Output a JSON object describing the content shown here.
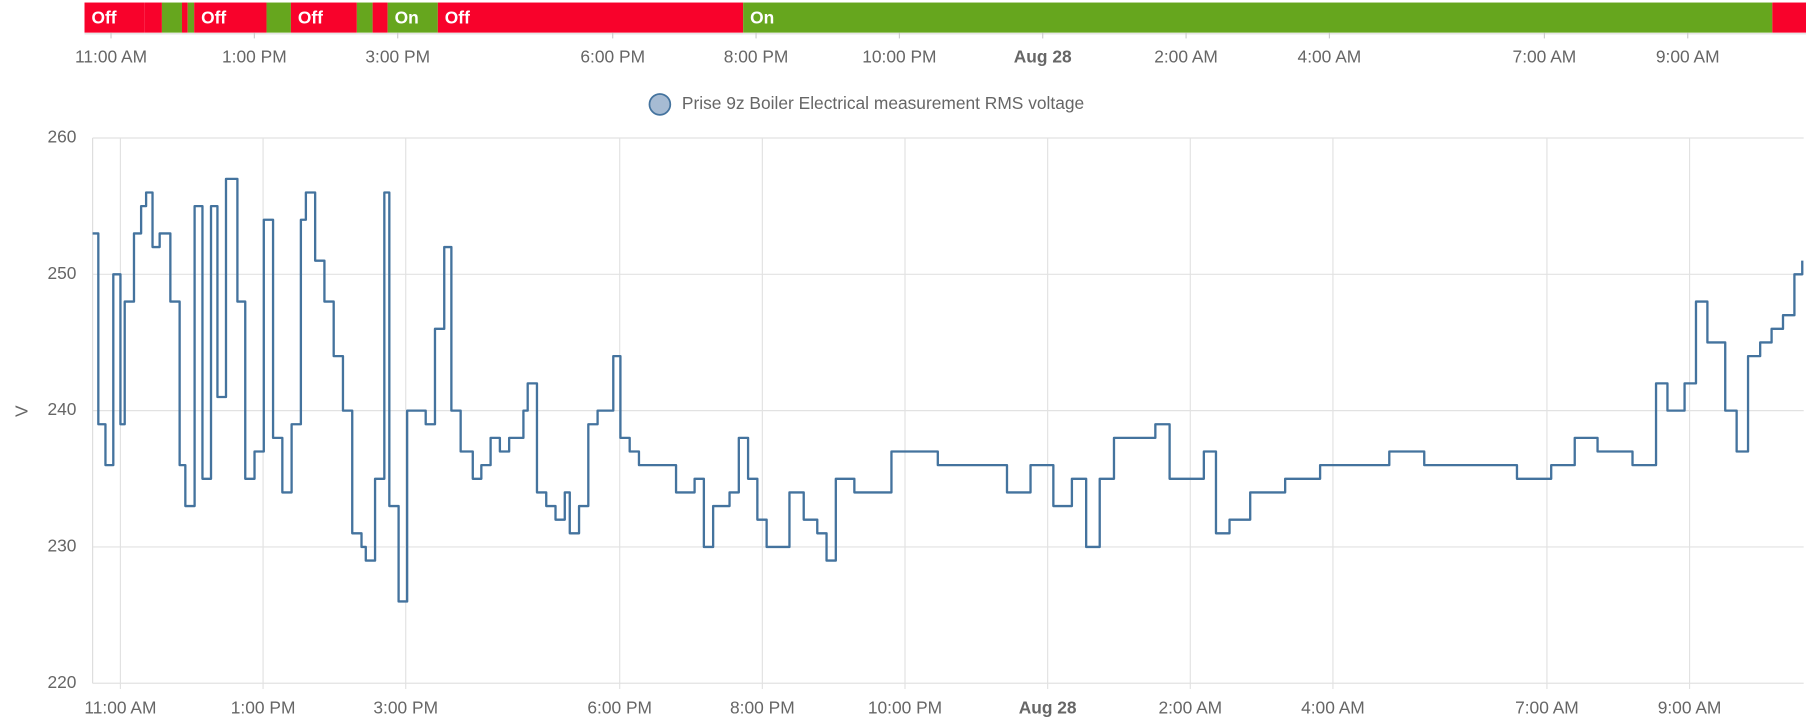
{
  "chart_data": [
    {
      "type": "timeline",
      "xlim": [
        10.63,
        34.65
      ],
      "xticks": [
        {
          "value": 11,
          "label": "11:00 AM"
        },
        {
          "value": 13,
          "label": "1:00 PM"
        },
        {
          "value": 15,
          "label": "3:00 PM"
        },
        {
          "value": 18,
          "label": "6:00 PM"
        },
        {
          "value": 20,
          "label": "8:00 PM"
        },
        {
          "value": 22,
          "label": "10:00 PM"
        },
        {
          "value": 24,
          "label": "Aug 28",
          "bold": true
        },
        {
          "value": 26,
          "label": "2:00 AM"
        },
        {
          "value": 28,
          "label": "4:00 AM"
        },
        {
          "value": 31,
          "label": "7:00 AM"
        },
        {
          "value": 33,
          "label": "9:00 AM"
        }
      ],
      "state_colors": {
        "Off": "#f8022b",
        "On": "#66a61e"
      },
      "segments": [
        {
          "state": "Off",
          "start": 10.63,
          "end": 11.47
        },
        {
          "state": "Off",
          "start": 11.47,
          "end": 11.71
        },
        {
          "state": "On",
          "start": 11.71,
          "end": 11.99
        },
        {
          "state": "Off",
          "start": 11.99,
          "end": 12.07
        },
        {
          "state": "On",
          "start": 12.07,
          "end": 12.16
        },
        {
          "state": "Off",
          "start": 12.16,
          "end": 13.17
        },
        {
          "state": "On",
          "start": 13.17,
          "end": 13.51
        },
        {
          "state": "Off",
          "start": 13.51,
          "end": 14.43
        },
        {
          "state": "On",
          "start": 14.43,
          "end": 14.65
        },
        {
          "state": "Off",
          "start": 14.65,
          "end": 14.86
        },
        {
          "state": "On",
          "start": 14.86,
          "end": 15.56
        },
        {
          "state": "Off",
          "start": 15.56,
          "end": 19.82
        },
        {
          "state": "On",
          "start": 19.82,
          "end": 34.18
        },
        {
          "state": "Off",
          "start": 34.18,
          "end": 34.65
        }
      ]
    },
    {
      "type": "line",
      "y_label": "V",
      "xlim": [
        10.61,
        34.6
      ],
      "xticks": [
        {
          "value": 11,
          "label": "11:00 AM"
        },
        {
          "value": 13,
          "label": "1:00 PM"
        },
        {
          "value": 15,
          "label": "3:00 PM"
        },
        {
          "value": 18,
          "label": "6:00 PM"
        },
        {
          "value": 20,
          "label": "8:00 PM"
        },
        {
          "value": 22,
          "label": "10:00 PM"
        },
        {
          "value": 24,
          "label": "Aug 28",
          "bold": true
        },
        {
          "value": 26,
          "label": "2:00 AM"
        },
        {
          "value": 28,
          "label": "4:00 AM"
        },
        {
          "value": 31,
          "label": "7:00 AM"
        },
        {
          "value": 33,
          "label": "9:00 AM"
        }
      ],
      "ylim": [
        220,
        260
      ],
      "yticks": [
        220,
        230,
        240,
        250,
        260
      ],
      "grid": true,
      "step": true,
      "x": [
        10.61,
        10.69,
        10.79,
        10.9,
        11.0,
        11.06,
        11.19,
        11.29,
        11.36,
        11.45,
        11.55,
        11.7,
        11.83,
        11.91,
        12.04,
        12.15,
        12.27,
        12.36,
        12.48,
        12.64,
        12.75,
        12.88,
        13.01,
        13.14,
        13.27,
        13.4,
        13.53,
        13.6,
        13.73,
        13.86,
        13.99,
        14.12,
        14.25,
        14.38,
        14.44,
        14.57,
        14.7,
        14.77,
        14.9,
        15.02,
        15.15,
        15.28,
        15.41,
        15.54,
        15.64,
        15.77,
        15.94,
        16.06,
        16.19,
        16.32,
        16.45,
        16.65,
        16.71,
        16.84,
        16.97,
        17.1,
        17.23,
        17.3,
        17.43,
        17.56,
        17.69,
        17.82,
        17.91,
        18.01,
        18.14,
        18.27,
        18.53,
        18.79,
        19.05,
        19.18,
        19.31,
        19.54,
        19.67,
        19.8,
        19.93,
        20.06,
        20.19,
        20.38,
        20.58,
        20.77,
        20.9,
        21.03,
        21.29,
        21.55,
        21.81,
        22.14,
        22.46,
        22.78,
        23.11,
        23.43,
        23.76,
        24.08,
        24.34,
        24.54,
        24.73,
        24.93,
        25.19,
        25.51,
        25.71,
        26.0,
        26.19,
        26.36,
        26.55,
        26.84,
        27.13,
        27.33,
        27.82,
        28.31,
        28.79,
        29.28,
        29.76,
        30.25,
        30.58,
        31.06,
        31.39,
        31.71,
        32.2,
        32.44,
        32.53,
        32.69,
        32.93,
        33.09,
        33.25,
        33.5,
        33.66,
        33.82,
        33.99,
        34.15,
        34.31,
        34.47,
        34.58
      ],
      "series": [
        {
          "name": "Prise 9z Boiler Electrical measurement RMS voltage",
          "color": "#44739e",
          "legend_fill": "#a6bbd3",
          "values": [
            253,
            239,
            236,
            250,
            239,
            248,
            253,
            255,
            256,
            252,
            253,
            248,
            236,
            233,
            255,
            235,
            255,
            241,
            257,
            248,
            235,
            237,
            254,
            238,
            234,
            239,
            254,
            256,
            251,
            248,
            244,
            240,
            231,
            230,
            229,
            235,
            256,
            233,
            226,
            240,
            240,
            239,
            246,
            252,
            240,
            237,
            235,
            236,
            238,
            237,
            238,
            240,
            242,
            234,
            233,
            232,
            234,
            231,
            233,
            239,
            240,
            240,
            244,
            238,
            237,
            236,
            236,
            234,
            235,
            230,
            233,
            234,
            238,
            235,
            232,
            230,
            230,
            234,
            232,
            231,
            229,
            235,
            234,
            234,
            237,
            237,
            236,
            236,
            236,
            234,
            236,
            233,
            235,
            230,
            235,
            238,
            238,
            239,
            235,
            235,
            237,
            231,
            232,
            234,
            234,
            235,
            236,
            236,
            237,
            236,
            236,
            236,
            235,
            236,
            238,
            237,
            236,
            236,
            242,
            240,
            242,
            248,
            245,
            240,
            237,
            244,
            245,
            246,
            247,
            250,
            251
          ]
        }
      ]
    }
  ]
}
